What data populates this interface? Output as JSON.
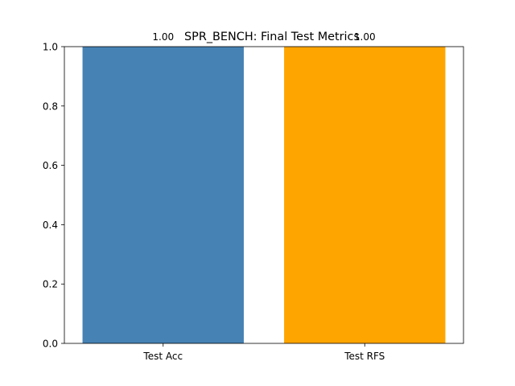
{
  "chart_data": {
    "type": "bar",
    "title": "SPR_BENCH: Final Test Metrics",
    "xlabel": "",
    "ylabel": "",
    "categories": [
      "Test Acc",
      "Test RFS"
    ],
    "values": [
      1.0,
      1.0
    ],
    "value_labels": [
      "1.00",
      "1.00"
    ],
    "colors": [
      "#4682b4",
      "#ffa500"
    ],
    "ylim": [
      0,
      1.0
    ],
    "yticks": [
      0.0,
      0.2,
      0.4,
      0.6,
      0.8,
      1.0
    ],
    "ytick_labels": [
      "0.0",
      "0.2",
      "0.4",
      "0.6",
      "0.8",
      "1.0"
    ],
    "grid": false,
    "legend": "none"
  }
}
